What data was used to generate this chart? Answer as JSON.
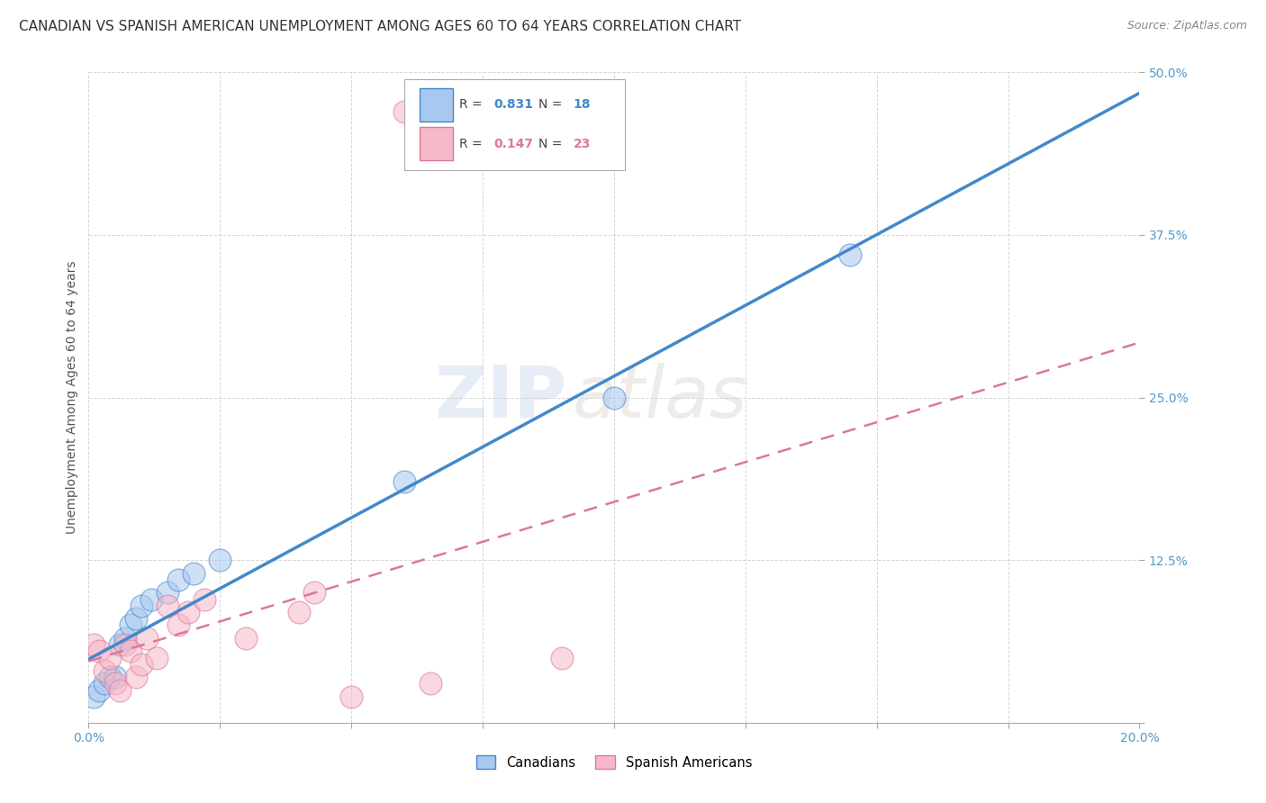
{
  "title": "CANADIAN VS SPANISH AMERICAN UNEMPLOYMENT AMONG AGES 60 TO 64 YEARS CORRELATION CHART",
  "source": "Source: ZipAtlas.com",
  "ylabel": "Unemployment Among Ages 60 to 64 years",
  "xlim": [
    0,
    0.2
  ],
  "ylim": [
    0,
    0.5
  ],
  "xticks": [
    0.0,
    0.025,
    0.05,
    0.075,
    0.1,
    0.125,
    0.15,
    0.175,
    0.2
  ],
  "yticks": [
    0.0,
    0.125,
    0.25,
    0.375,
    0.5
  ],
  "canadian_x": [
    0.001,
    0.002,
    0.003,
    0.004,
    0.005,
    0.006,
    0.007,
    0.008,
    0.009,
    0.01,
    0.012,
    0.015,
    0.017,
    0.02,
    0.025,
    0.06,
    0.1,
    0.145
  ],
  "canadian_y": [
    0.02,
    0.025,
    0.03,
    0.035,
    0.035,
    0.06,
    0.065,
    0.075,
    0.08,
    0.09,
    0.095,
    0.1,
    0.11,
    0.115,
    0.125,
    0.185,
    0.25,
    0.36
  ],
  "spanish_x": [
    0.001,
    0.002,
    0.003,
    0.004,
    0.005,
    0.006,
    0.007,
    0.008,
    0.009,
    0.01,
    0.011,
    0.013,
    0.015,
    0.017,
    0.019,
    0.022,
    0.03,
    0.04,
    0.043,
    0.05,
    0.06,
    0.065,
    0.09
  ],
  "spanish_y": [
    0.06,
    0.055,
    0.04,
    0.05,
    0.03,
    0.025,
    0.06,
    0.055,
    0.035,
    0.045,
    0.065,
    0.05,
    0.09,
    0.075,
    0.085,
    0.095,
    0.065,
    0.085,
    0.1,
    0.02,
    0.47,
    0.03,
    0.05
  ],
  "canadian_R": 0.831,
  "canadian_N": 18,
  "spanish_R": 0.147,
  "spanish_N": 23,
  "blue_color": "#A8C8F0",
  "pink_color": "#F5B8C8",
  "blue_line_color": "#4488CC",
  "pink_line_color": "#DD7799",
  "title_fontsize": 11,
  "label_fontsize": 10,
  "tick_fontsize": 10,
  "watermark_zip": "ZIP",
  "watermark_atlas": "atlas",
  "background_color": "#FFFFFF",
  "grid_color": "#CCCCCC"
}
